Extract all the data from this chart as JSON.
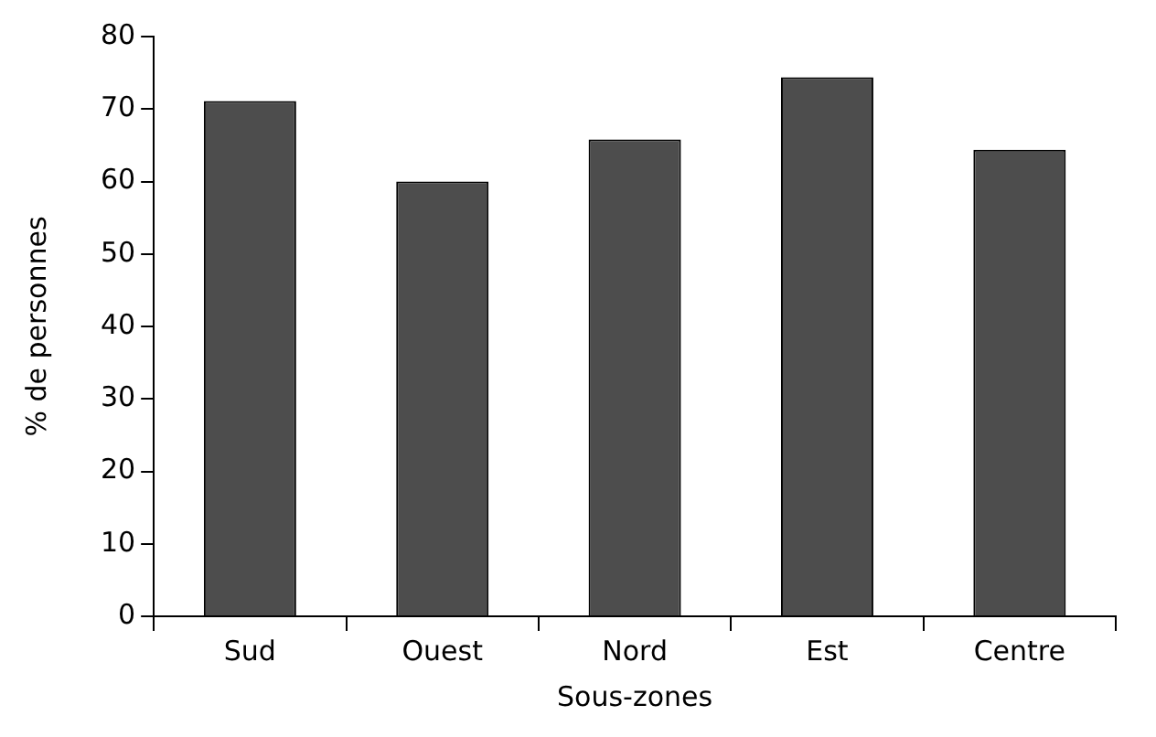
{
  "chart_data": {
    "type": "bar",
    "xlabel": "Sous-zones",
    "ylabel": "% de personnes",
    "categories": [
      "Sud",
      "Ouest",
      "Nord",
      "Est",
      "Centre"
    ],
    "values": [
      71.1,
      60.0,
      65.8,
      74.4,
      64.4
    ],
    "color": "#4d4d4d",
    "ylim": [
      0,
      80
    ],
    "yticks": [
      0,
      10,
      20,
      30,
      40,
      50,
      60,
      70,
      80
    ],
    "grid": false,
    "legend": false
  }
}
